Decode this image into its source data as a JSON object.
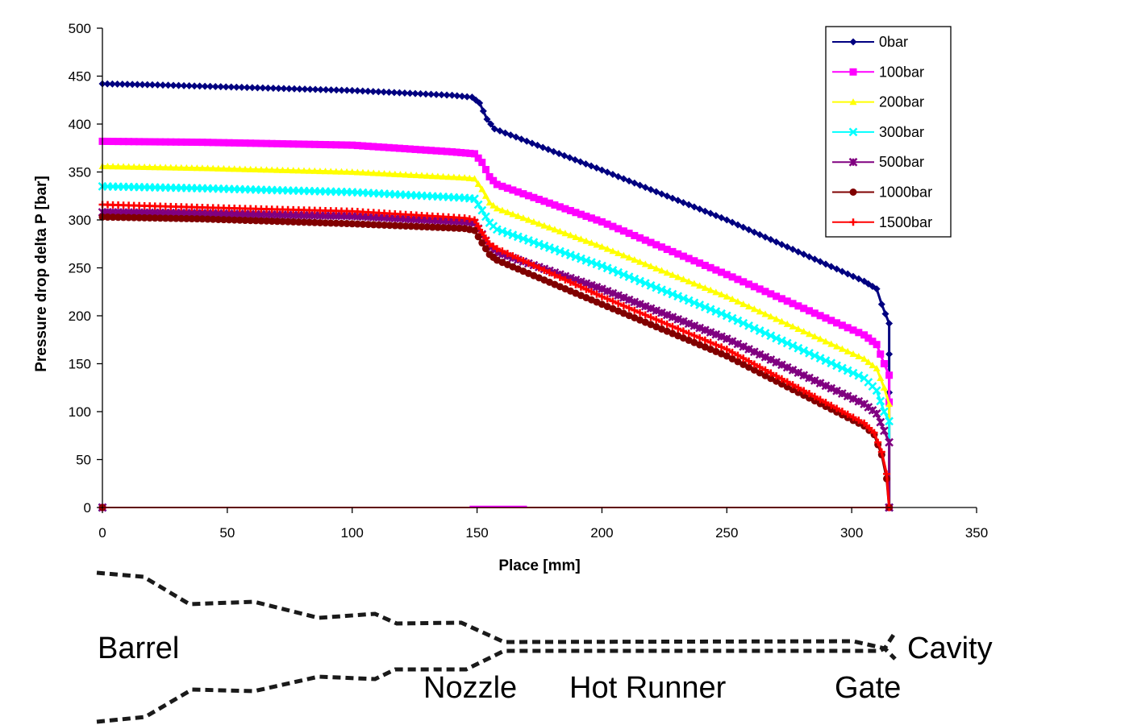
{
  "chart_data": {
    "type": "line",
    "xlabel": "Place [mm]",
    "ylabel": "Pressure drop delta P [bar]",
    "xlim": [
      0,
      350
    ],
    "ylim": [
      0,
      500
    ],
    "xticks": [
      0,
      50,
      100,
      150,
      200,
      250,
      300,
      350
    ],
    "yticks": [
      0,
      50,
      100,
      150,
      200,
      250,
      300,
      350,
      400,
      450,
      500
    ],
    "grid": false,
    "legend_position": "top-right",
    "series": [
      {
        "name": "0bar",
        "color": "#000080",
        "marker": "diamond",
        "points": [
          [
            0,
            442
          ],
          [
            20,
            441
          ],
          [
            60,
            438
          ],
          [
            100,
            435
          ],
          [
            140,
            430
          ],
          [
            148,
            428
          ],
          [
            151,
            422
          ],
          [
            154,
            405
          ],
          [
            157,
            395
          ],
          [
            200,
            352
          ],
          [
            250,
            300
          ],
          [
            305,
            236
          ],
          [
            310,
            228
          ],
          [
            312,
            212
          ],
          [
            315,
            192
          ],
          [
            315,
            160
          ],
          [
            315,
            120
          ],
          [
            315,
            0
          ]
        ]
      },
      {
        "name": "100bar",
        "color": "#ff00ff",
        "marker": "square",
        "points": [
          [
            0,
            382
          ],
          [
            40,
            381
          ],
          [
            100,
            378
          ],
          [
            140,
            371
          ],
          [
            149,
            369
          ],
          [
            152,
            360
          ],
          [
            155,
            345
          ],
          [
            158,
            337
          ],
          [
            200,
            298
          ],
          [
            250,
            243
          ],
          [
            305,
            180
          ],
          [
            310,
            170
          ],
          [
            313,
            150
          ],
          [
            315,
            138
          ],
          [
            315,
            110
          ],
          [
            315,
            0
          ]
        ]
      },
      {
        "name": "200bar",
        "color": "#ffff00",
        "marker": "triangle",
        "points": [
          [
            0,
            356
          ],
          [
            40,
            354
          ],
          [
            100,
            350
          ],
          [
            145,
            344
          ],
          [
            149,
            343
          ],
          [
            152,
            332
          ],
          [
            155,
            318
          ],
          [
            158,
            312
          ],
          [
            200,
            272
          ],
          [
            250,
            220
          ],
          [
            305,
            155
          ],
          [
            310,
            145
          ],
          [
            313,
            125
          ],
          [
            315,
            108
          ],
          [
            315,
            0
          ]
        ]
      },
      {
        "name": "300bar",
        "color": "#00ffff",
        "marker": "x",
        "points": [
          [
            0,
            335
          ],
          [
            40,
            333
          ],
          [
            100,
            329
          ],
          [
            145,
            323
          ],
          [
            149,
            322
          ],
          [
            152,
            310
          ],
          [
            155,
            297
          ],
          [
            158,
            290
          ],
          [
            200,
            252
          ],
          [
            250,
            200
          ],
          [
            305,
            135
          ],
          [
            310,
            122
          ],
          [
            313,
            100
          ],
          [
            315,
            90
          ],
          [
            315,
            0
          ]
        ]
      },
      {
        "name": "500bar",
        "color": "#800080",
        "marker": "star",
        "points": [
          [
            0,
            308
          ],
          [
            40,
            307
          ],
          [
            100,
            304
          ],
          [
            145,
            298
          ],
          [
            149,
            297
          ],
          [
            152,
            285
          ],
          [
            155,
            272
          ],
          [
            158,
            266
          ],
          [
            200,
            228
          ],
          [
            250,
            176
          ],
          [
            305,
            108
          ],
          [
            310,
            98
          ],
          [
            313,
            80
          ],
          [
            315,
            68
          ],
          [
            315,
            0
          ]
        ]
      },
      {
        "name": "1000bar",
        "color": "#800000",
        "marker": "circle",
        "points": [
          [
            0,
            303
          ],
          [
            40,
            301
          ],
          [
            100,
            296
          ],
          [
            145,
            291
          ],
          [
            149,
            289
          ],
          [
            152,
            276
          ],
          [
            155,
            264
          ],
          [
            158,
            258
          ],
          [
            200,
            212
          ],
          [
            250,
            158
          ],
          [
            305,
            85
          ],
          [
            309,
            76
          ],
          [
            312,
            55
          ],
          [
            314,
            30
          ],
          [
            315,
            0
          ]
        ]
      },
      {
        "name": "1500bar",
        "color": "#ff0000",
        "marker": "plus",
        "points": [
          [
            0,
            316
          ],
          [
            40,
            313
          ],
          [
            100,
            309
          ],
          [
            145,
            302
          ],
          [
            149,
            300
          ],
          [
            152,
            287
          ],
          [
            155,
            275
          ],
          [
            158,
            270
          ],
          [
            200,
            220
          ],
          [
            250,
            165
          ],
          [
            305,
            88
          ],
          [
            309,
            78
          ],
          [
            312,
            58
          ],
          [
            314,
            35
          ],
          [
            315,
            0
          ]
        ]
      }
    ],
    "baseline_series": [
      {
        "color": "#ff0000",
        "points": [
          [
            0,
            0
          ],
          [
            315,
            0
          ]
        ]
      },
      {
        "color": "#ff00ff",
        "points": [
          [
            147,
            1
          ],
          [
            170,
            1
          ]
        ]
      }
    ]
  },
  "schematic": {
    "labels": {
      "barrel": "Barrel",
      "nozzle": "Nozzle",
      "hot_runner": "Hot Runner",
      "gate": "Gate",
      "cavity": "Cavity"
    }
  }
}
